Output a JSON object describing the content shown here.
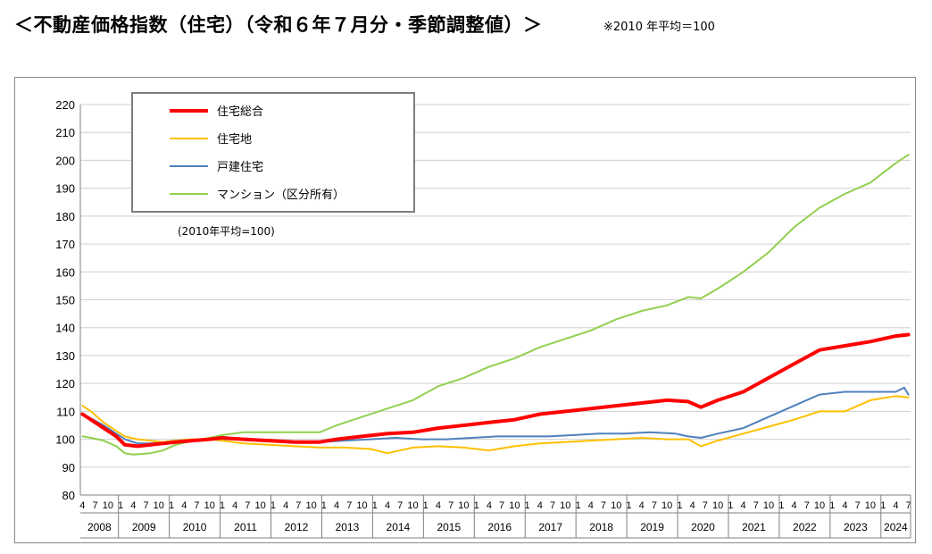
{
  "header": {
    "title": "＜不動産価格指数（住宅）（令和６年７月分・季節調整値）＞",
    "note": "※2010 年平均＝100"
  },
  "chart_data": {
    "type": "line",
    "ylim": [
      80,
      220
    ],
    "yticks": [
      80,
      90,
      100,
      110,
      120,
      130,
      140,
      150,
      160,
      170,
      180,
      190,
      200,
      210,
      220
    ],
    "grid": true,
    "legend_position": "top-left",
    "annotation": "(2010年平均=100)",
    "x_start": "2008-04",
    "x_end": "2024-07",
    "quarter_tick_labels": [
      "4",
      "7",
      "10",
      "1"
    ],
    "years": [
      "2008",
      "2009",
      "2010",
      "2011",
      "2012",
      "2013",
      "2014",
      "2015",
      "2016",
      "2017",
      "2018",
      "2019",
      "2020",
      "2021",
      "2022",
      "2023",
      "2024"
    ],
    "series": [
      {
        "name": "住宅総合",
        "color": "#ff0000",
        "width": 4,
        "points": [
          [
            "2008-04",
            109
          ],
          [
            "2008-06",
            107
          ],
          [
            "2008-09",
            104
          ],
          [
            "2008-12",
            101
          ],
          [
            "2009-02",
            98
          ],
          [
            "2009-05",
            97.5
          ],
          [
            "2009-08",
            98
          ],
          [
            "2009-11",
            98.5
          ],
          [
            "2010-02",
            99
          ],
          [
            "2010-06",
            99.5
          ],
          [
            "2010-10",
            100
          ],
          [
            "2011-01",
            100.5
          ],
          [
            "2011-06",
            100
          ],
          [
            "2011-12",
            99.5
          ],
          [
            "2012-06",
            99
          ],
          [
            "2012-12",
            99
          ],
          [
            "2013-04",
            100
          ],
          [
            "2013-10",
            101
          ],
          [
            "2014-04",
            102
          ],
          [
            "2014-10",
            102.5
          ],
          [
            "2015-04",
            104
          ],
          [
            "2015-10",
            105
          ],
          [
            "2016-04",
            106
          ],
          [
            "2016-10",
            107
          ],
          [
            "2017-04",
            109
          ],
          [
            "2017-10",
            110
          ],
          [
            "2018-04",
            111
          ],
          [
            "2018-10",
            112
          ],
          [
            "2019-04",
            113
          ],
          [
            "2019-10",
            114
          ],
          [
            "2020-03",
            113.5
          ],
          [
            "2020-06",
            111.5
          ],
          [
            "2020-10",
            114
          ],
          [
            "2021-04",
            117
          ],
          [
            "2021-10",
            122
          ],
          [
            "2022-04",
            127
          ],
          [
            "2022-10",
            132
          ],
          [
            "2023-04",
            133.5
          ],
          [
            "2023-10",
            135
          ],
          [
            "2024-04",
            137
          ],
          [
            "2024-07",
            137.5
          ]
        ]
      },
      {
        "name": "住宅地",
        "color": "#ffc000",
        "width": 2,
        "points": [
          [
            "2008-04",
            112
          ],
          [
            "2008-06",
            110
          ],
          [
            "2008-09",
            106
          ],
          [
            "2008-12",
            103
          ],
          [
            "2009-02",
            101
          ],
          [
            "2009-05",
            100
          ],
          [
            "2009-08",
            99.5
          ],
          [
            "2009-11",
            99
          ],
          [
            "2010-02",
            99.5
          ],
          [
            "2010-06",
            100
          ],
          [
            "2010-10",
            100
          ],
          [
            "2011-01",
            99.5
          ],
          [
            "2011-06",
            98.5
          ],
          [
            "2011-12",
            98
          ],
          [
            "2012-06",
            97.5
          ],
          [
            "2012-12",
            97
          ],
          [
            "2013-06",
            97
          ],
          [
            "2013-12",
            96.5
          ],
          [
            "2014-04",
            95
          ],
          [
            "2014-10",
            97
          ],
          [
            "2015-04",
            97.5
          ],
          [
            "2015-10",
            97
          ],
          [
            "2016-04",
            96
          ],
          [
            "2016-10",
            97.5
          ],
          [
            "2017-04",
            98.5
          ],
          [
            "2017-10",
            99
          ],
          [
            "2018-04",
            99.5
          ],
          [
            "2018-10",
            100
          ],
          [
            "2019-04",
            100.5
          ],
          [
            "2019-10",
            100
          ],
          [
            "2020-03",
            100
          ],
          [
            "2020-06",
            97.5
          ],
          [
            "2020-10",
            99.5
          ],
          [
            "2021-04",
            102
          ],
          [
            "2021-10",
            104.5
          ],
          [
            "2022-04",
            107
          ],
          [
            "2022-10",
            110
          ],
          [
            "2023-04",
            110
          ],
          [
            "2023-10",
            114
          ],
          [
            "2024-04",
            115.5
          ],
          [
            "2024-07",
            115
          ]
        ]
      },
      {
        "name": "戸建住宅",
        "color": "#4f81bd",
        "width": 2,
        "points": [
          [
            "2008-04",
            109
          ],
          [
            "2008-06",
            107.5
          ],
          [
            "2008-09",
            105
          ],
          [
            "2008-12",
            102
          ],
          [
            "2009-02",
            100
          ],
          [
            "2009-05",
            98.5
          ],
          [
            "2009-08",
            98.5
          ],
          [
            "2009-11",
            99
          ],
          [
            "2010-02",
            99.5
          ],
          [
            "2010-06",
            100
          ],
          [
            "2010-10",
            100
          ],
          [
            "2011-01",
            100
          ],
          [
            "2011-06",
            100
          ],
          [
            "2011-12",
            99.5
          ],
          [
            "2012-06",
            99
          ],
          [
            "2012-12",
            99
          ],
          [
            "2013-06",
            99.5
          ],
          [
            "2013-12",
            100
          ],
          [
            "2014-06",
            100.5
          ],
          [
            "2014-12",
            100
          ],
          [
            "2015-06",
            100
          ],
          [
            "2015-12",
            100.5
          ],
          [
            "2016-06",
            101
          ],
          [
            "2016-12",
            101
          ],
          [
            "2017-06",
            101
          ],
          [
            "2017-12",
            101.5
          ],
          [
            "2018-06",
            102
          ],
          [
            "2018-12",
            102
          ],
          [
            "2019-06",
            102.5
          ],
          [
            "2019-12",
            102
          ],
          [
            "2020-03",
            101
          ],
          [
            "2020-06",
            100.5
          ],
          [
            "2020-10",
            102
          ],
          [
            "2021-04",
            104
          ],
          [
            "2021-10",
            108
          ],
          [
            "2022-04",
            112
          ],
          [
            "2022-10",
            116
          ],
          [
            "2023-04",
            117
          ],
          [
            "2023-10",
            117
          ],
          [
            "2024-04",
            117
          ],
          [
            "2024-06",
            118.5
          ],
          [
            "2024-07",
            116
          ]
        ]
      },
      {
        "name": "マンション（区分所有）",
        "color": "#92d050",
        "width": 2,
        "points": [
          [
            "2008-04",
            101
          ],
          [
            "2008-06",
            100.5
          ],
          [
            "2008-09",
            99.5
          ],
          [
            "2008-12",
            97.5
          ],
          [
            "2009-02",
            95
          ],
          [
            "2009-04",
            94.5
          ],
          [
            "2009-08",
            95
          ],
          [
            "2009-11",
            96
          ],
          [
            "2010-02",
            98
          ],
          [
            "2010-06",
            99.5
          ],
          [
            "2010-10",
            100.5
          ],
          [
            "2011-01",
            101.5
          ],
          [
            "2011-06",
            102.5
          ],
          [
            "2011-12",
            102.5
          ],
          [
            "2012-06",
            102.5
          ],
          [
            "2012-12",
            102.5
          ],
          [
            "2013-04",
            105
          ],
          [
            "2013-10",
            108
          ],
          [
            "2014-04",
            111
          ],
          [
            "2014-10",
            114
          ],
          [
            "2015-04",
            119
          ],
          [
            "2015-10",
            122
          ],
          [
            "2016-04",
            126
          ],
          [
            "2016-10",
            129
          ],
          [
            "2017-04",
            133
          ],
          [
            "2017-10",
            136
          ],
          [
            "2018-04",
            139
          ],
          [
            "2018-10",
            143
          ],
          [
            "2019-04",
            146
          ],
          [
            "2019-10",
            148
          ],
          [
            "2020-03",
            151
          ],
          [
            "2020-06",
            150.5
          ],
          [
            "2020-10",
            154
          ],
          [
            "2021-04",
            160
          ],
          [
            "2021-10",
            167
          ],
          [
            "2022-04",
            176
          ],
          [
            "2022-10",
            183
          ],
          [
            "2023-04",
            188
          ],
          [
            "2023-10",
            192
          ],
          [
            "2024-04",
            199
          ],
          [
            "2024-07",
            202
          ]
        ]
      }
    ]
  }
}
